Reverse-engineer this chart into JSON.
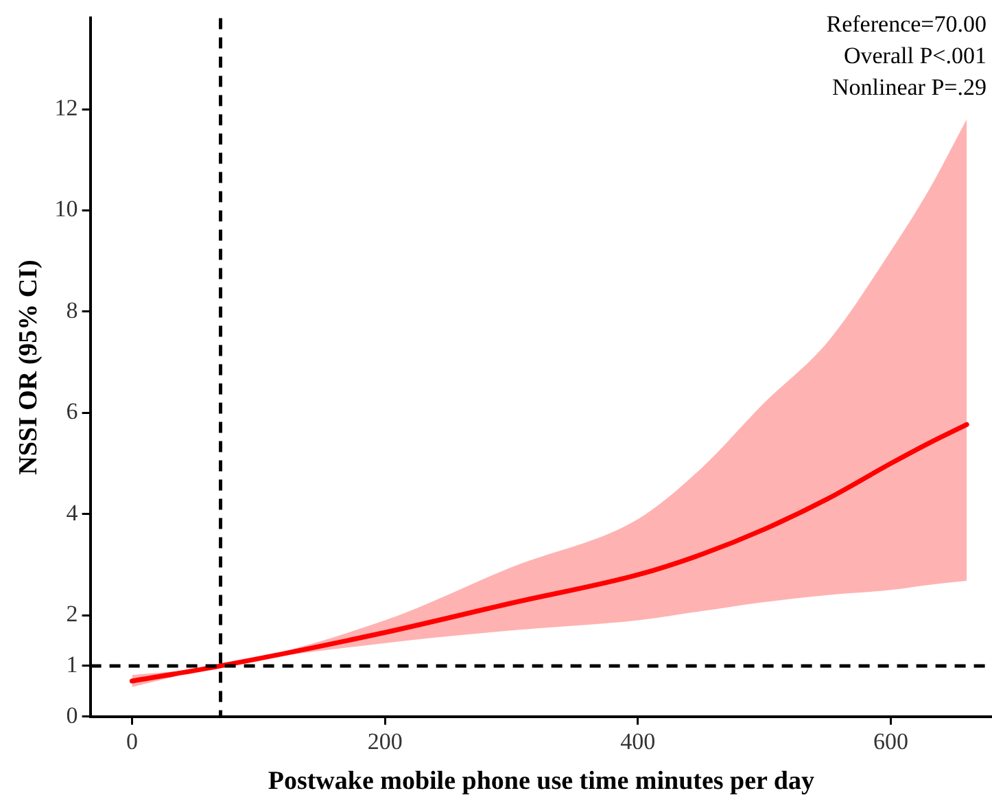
{
  "chart_data": {
    "type": "line",
    "xlabel": "Postwake mobile phone use time minutes per day",
    "ylabel": "NSSI OR (95% CI)",
    "annotations": [
      "Reference=70.00",
      "Overall P<.001",
      "Nonlinear P=.29"
    ],
    "x": [
      0,
      70,
      200,
      300,
      400,
      450,
      500,
      550,
      600,
      630,
      660
    ],
    "series": [
      {
        "color": "#ff0000",
        "values": [
          0.7,
          1,
          1.66,
          2.24,
          2.8,
          3.2,
          3.7,
          4.3,
          5.0,
          5.4,
          5.77
        ],
        "lower": [
          0.58,
          1,
          1.45,
          1.7,
          1.9,
          2.08,
          2.26,
          2.4,
          2.5,
          2.6,
          2.68
        ],
        "upper": [
          0.82,
          1,
          1.9,
          2.95,
          3.9,
          4.9,
          6.2,
          7.4,
          9.2,
          10.4,
          11.8
        ]
      }
    ],
    "xlim": [
      -33,
      680
    ],
    "xticks": [
      0,
      200,
      400,
      600
    ],
    "ylim": [
      0,
      13.8
    ],
    "yticks": [
      0,
      1,
      2,
      4,
      6,
      8,
      10,
      12
    ],
    "ref_lines": [
      {
        "axis": "x",
        "value": 70,
        "color": "#000000",
        "line_style": "dashed"
      },
      {
        "axis": "y",
        "value": 1,
        "color": "#000000",
        "line_style": "dashed"
      }
    ],
    "grid": false,
    "legend": false,
    "marker": "none",
    "line_style": "solid"
  }
}
